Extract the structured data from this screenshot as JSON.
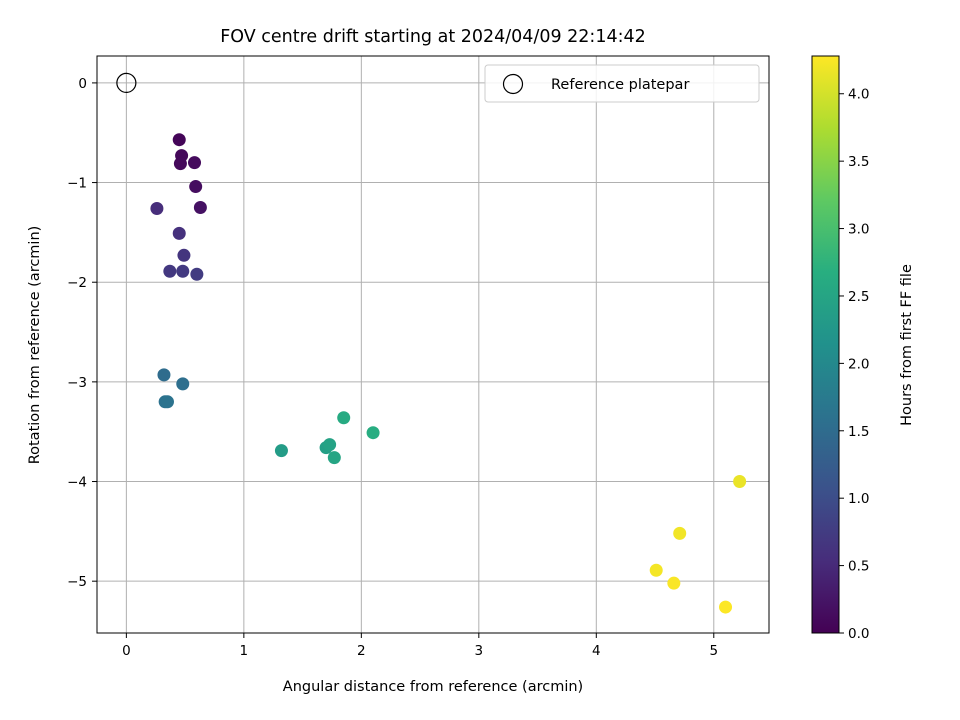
{
  "chart_data": {
    "type": "scatter",
    "title": "FOV centre drift starting at 2024/04/09 22:14:42",
    "xlabel": "Angular distance from reference (arcmin)",
    "ylabel": "Rotation from reference (arcmin)",
    "xlim": [
      -0.25,
      5.47
    ],
    "ylim": [
      -5.52,
      0.27
    ],
    "x_ticks": [
      0,
      1,
      2,
      3,
      4,
      5
    ],
    "x_tick_labels": [
      "0",
      "1",
      "2",
      "3",
      "4",
      "5"
    ],
    "y_ticks": [
      0,
      -1,
      -2,
      -3,
      -4,
      -5
    ],
    "y_tick_labels": [
      "0",
      "−1",
      "−2",
      "−3",
      "−4",
      "−5"
    ],
    "grid": true,
    "legend": {
      "position": "top-right",
      "label": "Reference platepar",
      "marker": "open-circle"
    },
    "reference_point": {
      "x": 0,
      "y": 0
    },
    "colorbar": {
      "label": "Hours from first FF file",
      "colormap": "viridis",
      "range": [
        0,
        4.28
      ],
      "ticks": [
        0,
        0.5,
        1,
        1.5,
        2,
        2.5,
        3,
        3.5,
        4
      ],
      "tick_labels": [
        "0.0",
        "0.5",
        "1.0",
        "1.5",
        "2.0",
        "2.5",
        "3.0",
        "3.5",
        "4.0"
      ]
    },
    "points": [
      {
        "x": 0.45,
        "y": -0.57,
        "hours": 0.05
      },
      {
        "x": 0.47,
        "y": -0.73,
        "hours": 0.08
      },
      {
        "x": 0.46,
        "y": -0.81,
        "hours": 0.1
      },
      {
        "x": 0.58,
        "y": -0.8,
        "hours": 0.12
      },
      {
        "x": 0.59,
        "y": -1.04,
        "hours": 0.15
      },
      {
        "x": 0.63,
        "y": -1.25,
        "hours": 0.2
      },
      {
        "x": 0.26,
        "y": -1.26,
        "hours": 0.55
      },
      {
        "x": 0.45,
        "y": -1.51,
        "hours": 0.6
      },
      {
        "x": 0.49,
        "y": -1.73,
        "hours": 0.65
      },
      {
        "x": 0.37,
        "y": -1.89,
        "hours": 0.7
      },
      {
        "x": 0.48,
        "y": -1.89,
        "hours": 0.72
      },
      {
        "x": 0.6,
        "y": -1.92,
        "hours": 0.75
      },
      {
        "x": 0.32,
        "y": -2.93,
        "hours": 1.5
      },
      {
        "x": 0.48,
        "y": -3.02,
        "hours": 1.55
      },
      {
        "x": 0.33,
        "y": -3.2,
        "hours": 1.6
      },
      {
        "x": 0.35,
        "y": -3.2,
        "hours": 1.62
      },
      {
        "x": 1.32,
        "y": -3.69,
        "hours": 2.35
      },
      {
        "x": 1.7,
        "y": -3.66,
        "hours": 2.4
      },
      {
        "x": 1.73,
        "y": -3.63,
        "hours": 2.45
      },
      {
        "x": 1.77,
        "y": -3.76,
        "hours": 2.5
      },
      {
        "x": 1.85,
        "y": -3.36,
        "hours": 2.6
      },
      {
        "x": 2.1,
        "y": -3.51,
        "hours": 2.65
      },
      {
        "x": 5.22,
        "y": -4.0,
        "hours": 4.15
      },
      {
        "x": 4.71,
        "y": -4.52,
        "hours": 4.2
      },
      {
        "x": 4.51,
        "y": -4.89,
        "hours": 4.22
      },
      {
        "x": 4.66,
        "y": -5.02,
        "hours": 4.25
      },
      {
        "x": 5.1,
        "y": -5.26,
        "hours": 4.27
      }
    ]
  }
}
